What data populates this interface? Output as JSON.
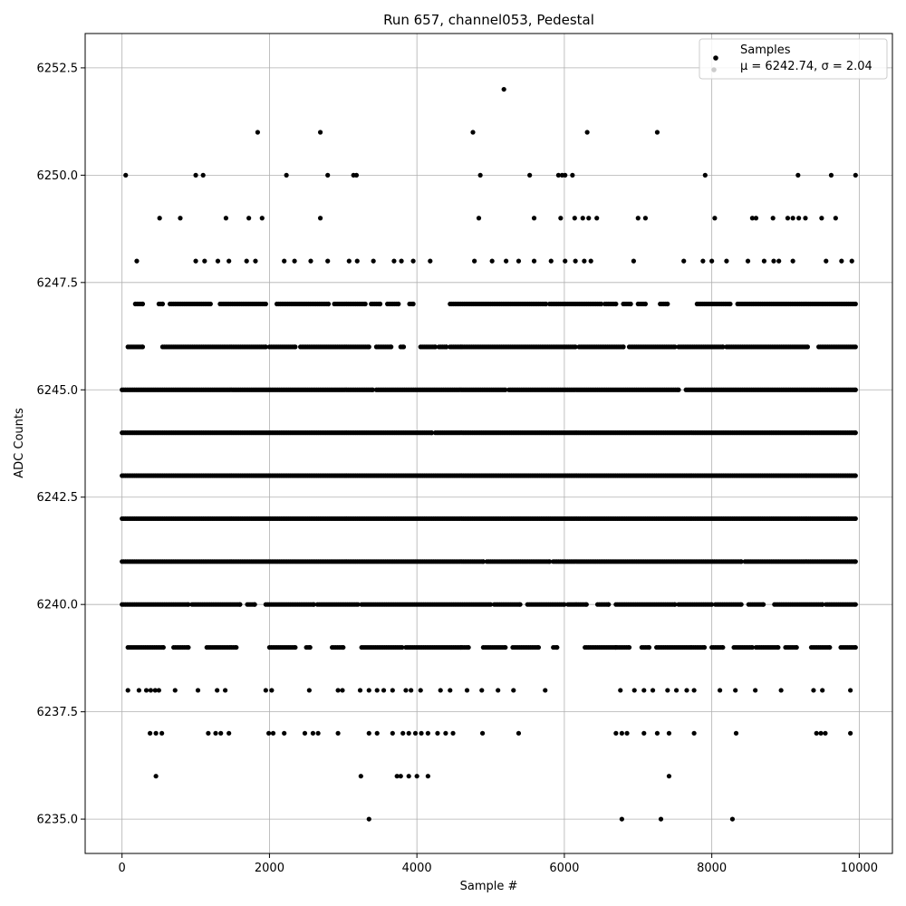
{
  "chart_data": {
    "type": "scatter",
    "title": "Run 657, channel053, Pedestal",
    "xlabel": "Sample #",
    "ylabel": "ADC Counts",
    "xlim": [
      -500,
      10450
    ],
    "ylim": [
      6234.2,
      6253.3
    ],
    "xticks": [
      0,
      2000,
      4000,
      6000,
      8000,
      10000
    ],
    "xtick_labels": [
      "0",
      "2000",
      "4000",
      "6000",
      "8000",
      "10000"
    ],
    "yticks": [
      6235.0,
      6237.5,
      6240.0,
      6242.5,
      6245.0,
      6247.5,
      6250.0,
      6252.5
    ],
    "ytick_labels": [
      "6235.0",
      "6237.5",
      "6240.0",
      "6242.5",
      "6245.0",
      "6247.5",
      "6250.0",
      "6252.5"
    ],
    "grid": true,
    "legend_position": "top-right",
    "legend": {
      "series_label": "Samples",
      "stats_label": "μ = 6242.74, σ = 2.04"
    },
    "mean": 6242.74,
    "sigma": 2.04,
    "marker_color": "#000000",
    "series": [
      {
        "name": "Samples",
        "points": [
          [
            50,
            6250
          ],
          [
            1000,
            6250
          ],
          [
            1100,
            6250
          ],
          [
            2230,
            6250
          ],
          [
            2790,
            6250
          ],
          [
            3140,
            6250
          ],
          [
            3180,
            6250
          ],
          [
            4860,
            6250
          ],
          [
            5530,
            6250
          ],
          [
            5920,
            6250
          ],
          [
            5970,
            6250
          ],
          [
            6010,
            6250
          ],
          [
            6110,
            6250
          ],
          [
            7910,
            6250
          ],
          [
            9170,
            6250
          ],
          [
            9620,
            6250
          ],
          [
            9950,
            6250
          ],
          [
            1840,
            6251
          ],
          [
            2690,
            6251
          ],
          [
            4760,
            6251
          ],
          [
            6310,
            6251
          ],
          [
            7260,
            6251
          ],
          [
            5180,
            6252
          ],
          [
            3350,
            6235
          ],
          [
            6780,
            6235
          ],
          [
            7310,
            6235
          ],
          [
            8280,
            6235
          ],
          [
            460,
            6236
          ],
          [
            3240,
            6236
          ],
          [
            3730,
            6236
          ],
          [
            3780,
            6236
          ],
          [
            3890,
            6236
          ],
          [
            4000,
            6236
          ],
          [
            4150,
            6236
          ],
          [
            7420,
            6236
          ],
          [
            510,
            6249
          ],
          [
            790,
            6249
          ],
          [
            1410,
            6249
          ],
          [
            1720,
            6249
          ],
          [
            1900,
            6249
          ],
          [
            2690,
            6249
          ],
          [
            4840,
            6249
          ],
          [
            5590,
            6249
          ],
          [
            5950,
            6249
          ],
          [
            6140,
            6249
          ],
          [
            6250,
            6249
          ],
          [
            6330,
            6249
          ],
          [
            6440,
            6249
          ],
          [
            7000,
            6249
          ],
          [
            7100,
            6249
          ],
          [
            8040,
            6249
          ],
          [
            8550,
            6249
          ],
          [
            8600,
            6249
          ],
          [
            8830,
            6249
          ],
          [
            9030,
            6249
          ],
          [
            9100,
            6249
          ],
          [
            9180,
            6249
          ],
          [
            9270,
            6249
          ],
          [
            9490,
            6249
          ],
          [
            9680,
            6249
          ],
          [
            200,
            6248
          ],
          [
            1000,
            6248
          ],
          [
            1120,
            6248
          ],
          [
            1300,
            6248
          ],
          [
            1450,
            6248
          ],
          [
            1690,
            6248
          ],
          [
            1810,
            6248
          ],
          [
            2200,
            6248
          ],
          [
            2340,
            6248
          ],
          [
            2560,
            6248
          ],
          [
            2790,
            6248
          ],
          [
            3080,
            6248
          ],
          [
            3190,
            6248
          ],
          [
            3410,
            6248
          ],
          [
            3690,
            6248
          ],
          [
            3790,
            6248
          ],
          [
            3950,
            6248
          ],
          [
            4180,
            6248
          ],
          [
            4780,
            6248
          ],
          [
            5020,
            6248
          ],
          [
            5210,
            6248
          ],
          [
            5380,
            6248
          ],
          [
            5590,
            6248
          ],
          [
            5820,
            6248
          ],
          [
            6010,
            6248
          ],
          [
            6150,
            6248
          ],
          [
            6270,
            6248
          ],
          [
            6360,
            6248
          ],
          [
            6940,
            6248
          ],
          [
            7620,
            6248
          ],
          [
            7880,
            6248
          ],
          [
            8000,
            6248
          ],
          [
            8200,
            6248
          ],
          [
            8490,
            6248
          ],
          [
            8710,
            6248
          ],
          [
            8840,
            6248
          ],
          [
            8910,
            6248
          ],
          [
            9100,
            6248
          ],
          [
            9550,
            6248
          ],
          [
            9760,
            6248
          ],
          [
            9900,
            6248
          ],
          [
            80,
            6238
          ],
          [
            230,
            6238
          ],
          [
            330,
            6238
          ],
          [
            390,
            6238
          ],
          [
            450,
            6238
          ],
          [
            500,
            6238
          ],
          [
            720,
            6238
          ],
          [
            1030,
            6238
          ],
          [
            1290,
            6238
          ],
          [
            1400,
            6238
          ],
          [
            1950,
            6238
          ],
          [
            2030,
            6238
          ],
          [
            2540,
            6238
          ],
          [
            2930,
            6238
          ],
          [
            2990,
            6238
          ],
          [
            3230,
            6238
          ],
          [
            3350,
            6238
          ],
          [
            3460,
            6238
          ],
          [
            3550,
            6238
          ],
          [
            3670,
            6238
          ],
          [
            3850,
            6238
          ],
          [
            3920,
            6238
          ],
          [
            4050,
            6238
          ],
          [
            4320,
            6238
          ],
          [
            4450,
            6238
          ],
          [
            4680,
            6238
          ],
          [
            4880,
            6238
          ],
          [
            5100,
            6238
          ],
          [
            5310,
            6238
          ],
          [
            5740,
            6238
          ],
          [
            6760,
            6238
          ],
          [
            6950,
            6238
          ],
          [
            7080,
            6238
          ],
          [
            7200,
            6238
          ],
          [
            7400,
            6238
          ],
          [
            7520,
            6238
          ],
          [
            7660,
            6238
          ],
          [
            7760,
            6238
          ],
          [
            8110,
            6238
          ],
          [
            8320,
            6238
          ],
          [
            8590,
            6238
          ],
          [
            8940,
            6238
          ],
          [
            9380,
            6238
          ],
          [
            9500,
            6238
          ],
          [
            9880,
            6238
          ],
          [
            380,
            6237
          ],
          [
            460,
            6237
          ],
          [
            540,
            6237
          ],
          [
            1170,
            6237
          ],
          [
            1270,
            6237
          ],
          [
            1340,
            6237
          ],
          [
            1450,
            6237
          ],
          [
            1990,
            6237
          ],
          [
            2050,
            6237
          ],
          [
            2200,
            6237
          ],
          [
            2480,
            6237
          ],
          [
            2590,
            6237
          ],
          [
            2660,
            6237
          ],
          [
            2930,
            6237
          ],
          [
            3350,
            6237
          ],
          [
            3460,
            6237
          ],
          [
            3670,
            6237
          ],
          [
            3810,
            6237
          ],
          [
            3890,
            6237
          ],
          [
            3980,
            6237
          ],
          [
            4060,
            6237
          ],
          [
            4150,
            6237
          ],
          [
            4280,
            6237
          ],
          [
            4390,
            6237
          ],
          [
            4490,
            6237
          ],
          [
            4890,
            6237
          ],
          [
            5380,
            6237
          ],
          [
            6700,
            6237
          ],
          [
            6780,
            6237
          ],
          [
            6850,
            6237
          ],
          [
            7080,
            6237
          ],
          [
            7260,
            6237
          ],
          [
            7420,
            6237
          ],
          [
            7760,
            6237
          ],
          [
            8330,
            6237
          ],
          [
            9420,
            6237
          ],
          [
            9480,
            6237
          ],
          [
            9540,
            6237
          ],
          [
            9880,
            6237
          ]
        ]
      }
    ],
    "dense_levels": [
      {
        "y": 6239,
        "segments": [
          [
            80,
            560
          ],
          [
            700,
            900
          ],
          [
            1150,
            1550
          ],
          [
            2000,
            2350
          ],
          [
            2500,
            2550
          ],
          [
            2850,
            3000
          ],
          [
            3250,
            3800
          ],
          [
            3850,
            4600
          ],
          [
            4620,
            4700
          ],
          [
            4900,
            5200
          ],
          [
            5300,
            5650
          ],
          [
            5850,
            5900
          ],
          [
            6280,
            6700
          ],
          [
            6700,
            6880
          ],
          [
            7050,
            7150
          ],
          [
            7250,
            7900
          ],
          [
            8000,
            8150
          ],
          [
            8300,
            8550
          ],
          [
            8600,
            8900
          ],
          [
            9000,
            9150
          ],
          [
            9350,
            9600
          ],
          [
            9750,
            9950
          ]
        ]
      },
      {
        "y": 6240,
        "segments": [
          [
            0,
            900
          ],
          [
            950,
            1600
          ],
          [
            1700,
            1800
          ],
          [
            1950,
            2600
          ],
          [
            2650,
            3200
          ],
          [
            3250,
            5000
          ],
          [
            5050,
            5400
          ],
          [
            5500,
            6000
          ],
          [
            6050,
            6300
          ],
          [
            6450,
            6600
          ],
          [
            6700,
            7500
          ],
          [
            7550,
            8000
          ],
          [
            8050,
            8400
          ],
          [
            8500,
            8700
          ],
          [
            8850,
            9500
          ],
          [
            9550,
            9950
          ]
        ]
      },
      {
        "y": 6241,
        "segments": [
          [
            0,
            4900
          ],
          [
            4950,
            5800
          ],
          [
            5850,
            8400
          ],
          [
            8450,
            9950
          ]
        ]
      },
      {
        "y": 6242,
        "segments": [
          [
            0,
            9950
          ]
        ]
      },
      {
        "y": 6243,
        "segments": [
          [
            0,
            9950
          ]
        ]
      },
      {
        "y": 6244,
        "segments": [
          [
            0,
            4200
          ],
          [
            4250,
            9950
          ]
        ]
      },
      {
        "y": 6245,
        "segments": [
          [
            0,
            3400
          ],
          [
            3450,
            5200
          ],
          [
            5250,
            7550
          ],
          [
            7650,
            9950
          ]
        ]
      },
      {
        "y": 6246,
        "segments": [
          [
            80,
            280
          ],
          [
            550,
            1950
          ],
          [
            2000,
            2350
          ],
          [
            2420,
            3350
          ],
          [
            3450,
            3650
          ],
          [
            3780,
            3820
          ],
          [
            4050,
            4250
          ],
          [
            4300,
            4400
          ],
          [
            4450,
            4600
          ],
          [
            4620,
            6150
          ],
          [
            6200,
            6800
          ],
          [
            6880,
            7500
          ],
          [
            7550,
            8150
          ],
          [
            8200,
            9300
          ],
          [
            9450,
            9950
          ]
        ]
      },
      {
        "y": 6247,
        "segments": [
          [
            180,
            280
          ],
          [
            500,
            550
          ],
          [
            650,
            1200
          ],
          [
            1330,
            1950
          ],
          [
            2100,
            2800
          ],
          [
            2880,
            3300
          ],
          [
            3380,
            3500
          ],
          [
            3600,
            3750
          ],
          [
            3900,
            3950
          ],
          [
            4450,
            5750
          ],
          [
            5800,
            6500
          ],
          [
            6550,
            6700
          ],
          [
            6800,
            6900
          ],
          [
            7000,
            7100
          ],
          [
            7300,
            7400
          ],
          [
            7800,
            8250
          ],
          [
            8350,
            9500
          ],
          [
            9520,
            9950
          ]
        ]
      }
    ]
  }
}
